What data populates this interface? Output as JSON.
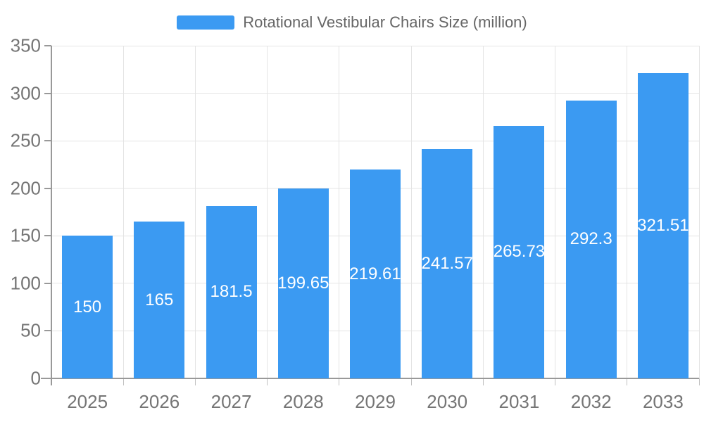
{
  "chart_data": {
    "type": "bar",
    "title": "Rotational Vestibular Chairs Size (million)",
    "legend": "Rotational Vestibular Chairs Size (million)",
    "legend_position": "top-center",
    "categories": [
      "2025",
      "2026",
      "2027",
      "2028",
      "2029",
      "2030",
      "2031",
      "2032",
      "2033"
    ],
    "values": [
      150,
      165,
      181.5,
      199.65,
      219.61,
      241.57,
      265.73,
      292.3,
      321.51
    ],
    "xlabel": "",
    "ylabel": "",
    "ylim": [
      0,
      350
    ],
    "ytick_step": 50,
    "yticks": [
      0,
      50,
      100,
      150,
      200,
      250,
      300,
      350
    ],
    "grid": true,
    "bar_width_ratio": 0.7,
    "value_labels_inside_bars": true
  },
  "colors": {
    "bar": "#3b9af2",
    "bar_value_text": "#ffffff",
    "axis_line": "#999999",
    "gridline": "#e4e4e4",
    "category_tick": "#c0c0c0",
    "axis_text": "#757575",
    "legend_text": "#666666",
    "background": "#ffffff"
  }
}
